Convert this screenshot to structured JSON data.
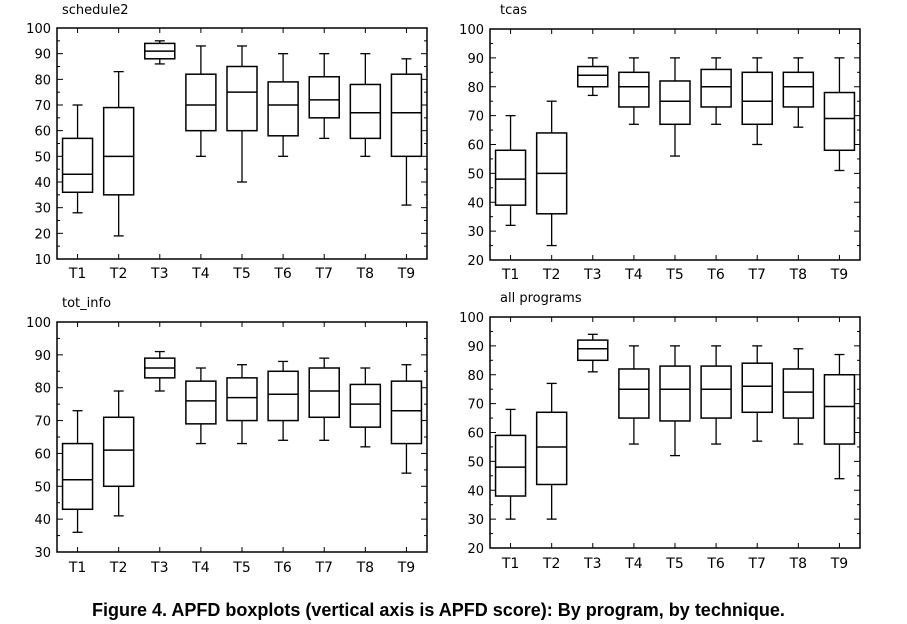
{
  "caption": "Figure 4. APFD boxplots (vertical axis is APFD score): By program, by technique.",
  "chart_data": [
    {
      "type": "box",
      "title": "schedule2",
      "categories": [
        "T1",
        "T2",
        "T3",
        "T4",
        "T5",
        "T6",
        "T7",
        "T8",
        "T9"
      ],
      "ylim": [
        10,
        100
      ],
      "yticks": [
        10,
        20,
        30,
        40,
        50,
        60,
        70,
        80,
        90,
        100
      ],
      "boxes": [
        {
          "min": 28,
          "q1": 36,
          "median": 43,
          "q3": 57,
          "max": 70
        },
        {
          "min": 19,
          "q1": 35,
          "median": 50,
          "q3": 69,
          "max": 83
        },
        {
          "min": 86,
          "q1": 88,
          "median": 91,
          "q3": 94,
          "max": 95
        },
        {
          "min": 50,
          "q1": 60,
          "median": 70,
          "q3": 82,
          "max": 93
        },
        {
          "min": 40,
          "q1": 60,
          "median": 75,
          "q3": 85,
          "max": 93
        },
        {
          "min": 50,
          "q1": 58,
          "median": 70,
          "q3": 79,
          "max": 90
        },
        {
          "min": 57,
          "q1": 65,
          "median": 72,
          "q3": 81,
          "max": 90
        },
        {
          "min": 50,
          "q1": 57,
          "median": 67,
          "q3": 78,
          "max": 90
        },
        {
          "min": 31,
          "q1": 50,
          "median": 67,
          "q3": 82,
          "max": 88
        }
      ]
    },
    {
      "type": "box",
      "title": "tcas",
      "categories": [
        "T1",
        "T2",
        "T3",
        "T4",
        "T5",
        "T6",
        "T7",
        "T8",
        "T9"
      ],
      "ylim": [
        20,
        100
      ],
      "yticks": [
        20,
        30,
        40,
        50,
        60,
        70,
        80,
        90,
        100
      ],
      "boxes": [
        {
          "min": 32,
          "q1": 39,
          "median": 48,
          "q3": 58,
          "max": 70
        },
        {
          "min": 25,
          "q1": 36,
          "median": 50,
          "q3": 64,
          "max": 75
        },
        {
          "min": 77,
          "q1": 80,
          "median": 84,
          "q3": 87,
          "max": 90
        },
        {
          "min": 67,
          "q1": 73,
          "median": 80,
          "q3": 85,
          "max": 90
        },
        {
          "min": 56,
          "q1": 67,
          "median": 75,
          "q3": 82,
          "max": 90
        },
        {
          "min": 67,
          "q1": 73,
          "median": 80,
          "q3": 86,
          "max": 90
        },
        {
          "min": 60,
          "q1": 67,
          "median": 75,
          "q3": 85,
          "max": 90
        },
        {
          "min": 66,
          "q1": 73,
          "median": 80,
          "q3": 85,
          "max": 90
        },
        {
          "min": 51,
          "q1": 58,
          "median": 69,
          "q3": 78,
          "max": 90
        }
      ]
    },
    {
      "type": "box",
      "title": "tot_info",
      "categories": [
        "T1",
        "T2",
        "T3",
        "T4",
        "T5",
        "T6",
        "T7",
        "T8",
        "T9"
      ],
      "ylim": [
        30,
        100
      ],
      "yticks": [
        30,
        40,
        50,
        60,
        70,
        80,
        90,
        100
      ],
      "boxes": [
        {
          "min": 36,
          "q1": 43,
          "median": 52,
          "q3": 63,
          "max": 73
        },
        {
          "min": 41,
          "q1": 50,
          "median": 61,
          "q3": 71,
          "max": 79
        },
        {
          "min": 79,
          "q1": 83,
          "median": 86,
          "q3": 89,
          "max": 91
        },
        {
          "min": 63,
          "q1": 69,
          "median": 76,
          "q3": 82,
          "max": 86
        },
        {
          "min": 63,
          "q1": 70,
          "median": 77,
          "q3": 83,
          "max": 87
        },
        {
          "min": 64,
          "q1": 70,
          "median": 78,
          "q3": 85,
          "max": 88
        },
        {
          "min": 64,
          "q1": 71,
          "median": 79,
          "q3": 86,
          "max": 89
        },
        {
          "min": 62,
          "q1": 68,
          "median": 75,
          "q3": 81,
          "max": 86
        },
        {
          "min": 54,
          "q1": 63,
          "median": 73,
          "q3": 82,
          "max": 87
        }
      ]
    },
    {
      "type": "box",
      "title": "all programs",
      "categories": [
        "T1",
        "T2",
        "T3",
        "T4",
        "T5",
        "T6",
        "T7",
        "T8",
        "T9"
      ],
      "ylim": [
        20,
        100
      ],
      "yticks": [
        20,
        30,
        40,
        50,
        60,
        70,
        80,
        90,
        100
      ],
      "boxes": [
        {
          "min": 30,
          "q1": 38,
          "median": 48,
          "q3": 59,
          "max": 68
        },
        {
          "min": 30,
          "q1": 42,
          "median": 55,
          "q3": 67,
          "max": 77
        },
        {
          "min": 81,
          "q1": 85,
          "median": 89,
          "q3": 92,
          "max": 94
        },
        {
          "min": 56,
          "q1": 65,
          "median": 75,
          "q3": 82,
          "max": 90
        },
        {
          "min": 52,
          "q1": 64,
          "median": 75,
          "q3": 83,
          "max": 90
        },
        {
          "min": 56,
          "q1": 65,
          "median": 75,
          "q3": 83,
          "max": 90
        },
        {
          "min": 57,
          "q1": 67,
          "median": 76,
          "q3": 84,
          "max": 90
        },
        {
          "min": 56,
          "q1": 65,
          "median": 74,
          "q3": 82,
          "max": 89
        },
        {
          "min": 44,
          "q1": 56,
          "median": 69,
          "q3": 80,
          "max": 87
        }
      ]
    }
  ]
}
